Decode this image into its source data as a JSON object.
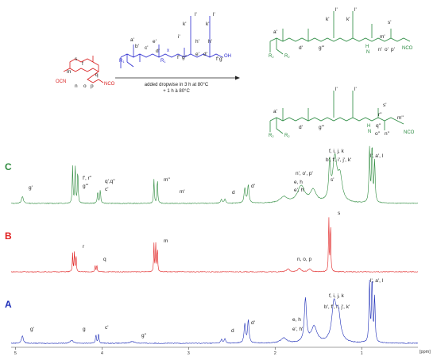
{
  "colors": {
    "panel_C": "#2e8b3e",
    "panel_B": "#e02020",
    "panel_A": "#1f2fb8",
    "scheme_red": "#d81e1e",
    "scheme_blue": "#2c2ccf",
    "scheme_green": "#2a8a40",
    "text": "#222222"
  },
  "scheme": {
    "arrow_text_1": "added dropwise in 3 h at 80°C",
    "arrow_text_2": "+ 1 h à 80°C",
    "ocn": "OCN",
    "nco": "NCO",
    "r1": "R",
    "r2": "R",
    "oh": "OH",
    "x": "x",
    "h": "H",
    "n": "N"
  },
  "chart_data": {
    "type": "line",
    "xlabel": "[ppm]",
    "xlim": [
      5.05,
      0.35
    ],
    "x_ticks": [
      "5",
      "4",
      "3",
      "2",
      "1"
    ],
    "panels": [
      {
        "name": "C",
        "peaks": [
          {
            "ppm": 4.92,
            "h": 0.12,
            "w": 0.012
          },
          {
            "ppm": 4.34,
            "h": 0.62,
            "w": 0.005
          },
          {
            "ppm": 4.31,
            "h": 0.66,
            "w": 0.005
          },
          {
            "ppm": 4.28,
            "h": 0.58,
            "w": 0.005
          },
          {
            "ppm": 4.05,
            "h": 0.2,
            "w": 0.006
          },
          {
            "ppm": 4.02,
            "h": 0.22,
            "w": 0.006
          },
          {
            "ppm": 3.4,
            "h": 0.4,
            "w": 0.005
          },
          {
            "ppm": 3.36,
            "h": 0.42,
            "w": 0.005
          },
          {
            "ppm": 2.62,
            "h": 0.06,
            "w": 0.01
          },
          {
            "ppm": 2.58,
            "h": 0.07,
            "w": 0.01
          },
          {
            "ppm": 2.35,
            "h": 0.25,
            "w": 0.01
          },
          {
            "ppm": 2.31,
            "h": 0.3,
            "w": 0.01
          },
          {
            "ppm": 1.9,
            "h": 0.1,
            "w": 0.05
          },
          {
            "ppm": 1.7,
            "h": 0.28,
            "w": 0.05
          },
          {
            "ppm": 1.56,
            "h": 0.2,
            "w": 0.04
          },
          {
            "ppm": 1.37,
            "h": 0.6,
            "w": 0.012
          },
          {
            "ppm": 1.31,
            "h": 0.72,
            "w": 0.03
          },
          {
            "ppm": 1.25,
            "h": 0.4,
            "w": 0.03
          },
          {
            "ppm": 0.91,
            "h": 0.92,
            "w": 0.007
          },
          {
            "ppm": 0.88,
            "h": 0.95,
            "w": 0.007
          },
          {
            "ppm": 0.85,
            "h": 0.7,
            "w": 0.007
          }
        ],
        "labels": [
          "g'",
          "g'''",
          "f', r''",
          "c'",
          "q',q''",
          "m''",
          "m'",
          "d",
          "d'",
          "n', o', p'",
          "e, h",
          "e', h'",
          "f, i, j, k",
          "b', f', i', j', k'",
          "s'",
          "l', a', l"
        ]
      },
      {
        "name": "B",
        "peaks": [
          {
            "ppm": 4.34,
            "h": 0.32,
            "w": 0.004
          },
          {
            "ppm": 4.32,
            "h": 0.36,
            "w": 0.004
          },
          {
            "ppm": 4.3,
            "h": 0.32,
            "w": 0.004
          },
          {
            "ppm": 4.08,
            "h": 0.12,
            "w": 0.004
          },
          {
            "ppm": 4.06,
            "h": 0.13,
            "w": 0.004
          },
          {
            "ppm": 3.4,
            "h": 0.48,
            "w": 0.004
          },
          {
            "ppm": 3.38,
            "h": 0.52,
            "w": 0.004
          },
          {
            "ppm": 3.36,
            "h": 0.46,
            "w": 0.004
          },
          {
            "ppm": 1.85,
            "h": 0.05,
            "w": 0.02
          },
          {
            "ppm": 1.72,
            "h": 0.06,
            "w": 0.02
          },
          {
            "ppm": 1.6,
            "h": 0.05,
            "w": 0.02
          },
          {
            "ppm": 1.38,
            "h": 1.0,
            "w": 0.004
          },
          {
            "ppm": 1.36,
            "h": 0.95,
            "w": 0.004
          }
        ],
        "labels": [
          "r",
          "q",
          "m",
          "n, o, p",
          "s"
        ]
      },
      {
        "name": "A",
        "peaks": [
          {
            "ppm": 4.92,
            "h": 0.12,
            "w": 0.012
          },
          {
            "ppm": 4.35,
            "h": 0.05,
            "w": 0.02
          },
          {
            "ppm": 4.07,
            "h": 0.14,
            "w": 0.006
          },
          {
            "ppm": 4.04,
            "h": 0.15,
            "w": 0.006
          },
          {
            "ppm": 3.65,
            "h": 0.03,
            "w": 0.03
          },
          {
            "ppm": 2.62,
            "h": 0.06,
            "w": 0.01
          },
          {
            "ppm": 2.58,
            "h": 0.07,
            "w": 0.01
          },
          {
            "ppm": 2.35,
            "h": 0.3,
            "w": 0.01
          },
          {
            "ppm": 2.31,
            "h": 0.36,
            "w": 0.01
          },
          {
            "ppm": 1.9,
            "h": 0.08,
            "w": 0.04
          },
          {
            "ppm": 1.65,
            "h": 0.68,
            "w": 0.015
          },
          {
            "ppm": 1.55,
            "h": 0.25,
            "w": 0.04
          },
          {
            "ppm": 1.32,
            "h": 0.58,
            "w": 0.03
          },
          {
            "ppm": 1.27,
            "h": 0.42,
            "w": 0.03
          },
          {
            "ppm": 0.91,
            "h": 0.95,
            "w": 0.007
          },
          {
            "ppm": 0.88,
            "h": 1.0,
            "w": 0.007
          },
          {
            "ppm": 0.85,
            "h": 0.72,
            "w": 0.007
          }
        ],
        "labels": [
          "g'",
          "g",
          "c'",
          "g''",
          "d",
          "d'",
          "e, h",
          "e', h'",
          "f, i, j, k",
          "b', f', i', j', k'",
          "l', a', l"
        ]
      }
    ]
  }
}
